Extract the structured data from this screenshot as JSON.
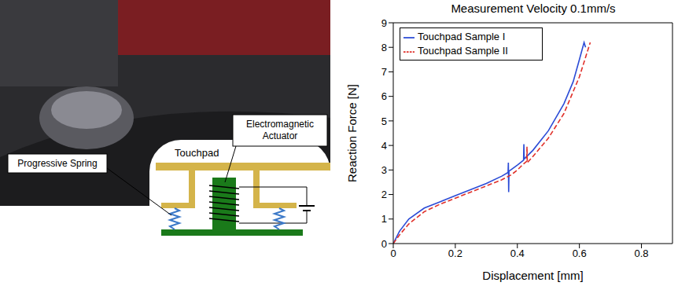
{
  "diagram": {
    "touchpad": "Touchpad",
    "actuator": "Electromagnetic Actuator",
    "spring": "Progressive Spring"
  },
  "chart_data": {
    "type": "line",
    "title": "Measurement Velocity 0.1mm/s",
    "x_label": "Displacement [mm]",
    "y_label": "Reaction Force [N]",
    "xlim": [
      0,
      0.9
    ],
    "xticks": [
      0,
      0.2,
      0.4,
      0.6,
      0.8
    ],
    "ylim": [
      0,
      9
    ],
    "yticks": [
      0,
      1,
      2,
      3,
      4,
      5,
      6,
      7,
      8,
      9
    ],
    "grid": false,
    "legend": "upper left",
    "series": [
      {
        "name": "Touchpad Sample I",
        "color": "#2b4bd6",
        "line_style": "solid",
        "x": [
          0,
          0.02,
          0.05,
          0.1,
          0.15,
          0.2,
          0.25,
          0.3,
          0.35,
          0.37,
          0.371,
          0.372,
          0.373,
          0.4,
          0.42,
          0.421,
          0.422,
          0.45,
          0.5,
          0.55,
          0.58,
          0.6,
          0.615,
          0.62
        ],
        "values": [
          0,
          0.5,
          1.0,
          1.45,
          1.7,
          1.95,
          2.2,
          2.45,
          2.75,
          2.9,
          3.3,
          2.1,
          2.95,
          3.2,
          3.4,
          4.05,
          3.45,
          3.8,
          4.6,
          5.7,
          6.6,
          7.5,
          8.2,
          8.0
        ]
      },
      {
        "name": "Touchpad Sample II",
        "color": "#e0302a",
        "line_style": "dashed",
        "x": [
          0,
          0.02,
          0.05,
          0.1,
          0.15,
          0.2,
          0.25,
          0.3,
          0.35,
          0.38,
          0.4,
          0.42,
          0.43,
          0.431,
          0.432,
          0.45,
          0.5,
          0.55,
          0.6,
          0.62,
          0.635
        ],
        "values": [
          0,
          0.35,
          0.8,
          1.3,
          1.6,
          1.85,
          2.1,
          2.35,
          2.6,
          2.8,
          3.0,
          3.25,
          3.35,
          3.95,
          3.3,
          3.55,
          4.3,
          5.3,
          6.8,
          7.6,
          8.2
        ]
      }
    ]
  }
}
